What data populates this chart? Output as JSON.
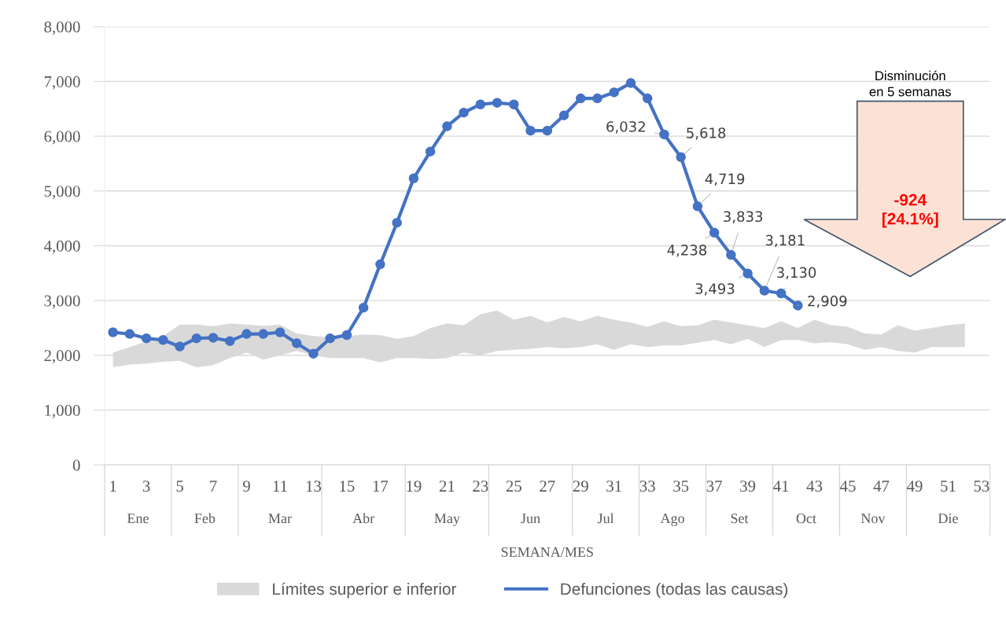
{
  "chart_data": {
    "type": "line",
    "xlabel": "SEMANA/MES",
    "x": [
      1,
      2,
      3,
      4,
      5,
      6,
      7,
      8,
      9,
      10,
      11,
      12,
      13,
      14,
      15,
      16,
      17,
      18,
      19,
      20,
      21,
      22,
      23,
      24,
      25,
      26,
      27,
      28,
      29,
      30,
      31,
      32,
      33,
      34,
      35,
      36,
      37,
      38,
      39,
      40,
      41,
      42
    ],
    "xlim": [
      0.5,
      53.5
    ],
    "xticks": [
      1,
      3,
      5,
      7,
      9,
      11,
      13,
      15,
      17,
      19,
      21,
      23,
      25,
      27,
      29,
      31,
      33,
      35,
      37,
      39,
      41,
      43,
      45,
      47,
      49,
      51,
      53
    ],
    "ylim": [
      0,
      8000
    ],
    "yticks": [
      0,
      {
        "value": 1000,
        "label": "1,000"
      },
      {
        "value": 2000,
        "label": "2,000"
      },
      {
        "value": 3000,
        "label": "3,000"
      },
      {
        "value": 4000,
        "label": "4,000"
      },
      {
        "value": 5000,
        "label": "5,000"
      },
      {
        "value": 6000,
        "label": "6,000"
      },
      {
        "value": 7000,
        "label": "7,000"
      },
      {
        "value": 8000,
        "label": "8,000"
      }
    ],
    "grid": "y",
    "legend": "bottom",
    "series": [
      {
        "name": "Límites superior e inferior",
        "type": "area",
        "color": "#d9d9d9",
        "x": [
          1,
          2,
          3,
          4,
          5,
          6,
          7,
          8,
          9,
          10,
          11,
          12,
          13,
          14,
          15,
          16,
          17,
          18,
          19,
          20,
          21,
          22,
          23,
          24,
          25,
          26,
          27,
          28,
          29,
          30,
          31,
          32,
          33,
          34,
          35,
          36,
          37,
          38,
          39,
          40,
          41,
          42,
          43,
          44,
          45,
          46,
          47,
          48,
          49,
          50,
          51,
          52
        ],
        "values": [
          null,
          null,
          null,
          null,
          null,
          null,
          null,
          null,
          null,
          null,
          null,
          null,
          null,
          null,
          null,
          null,
          null,
          null,
          null,
          null,
          null,
          null,
          null,
          null,
          null,
          null,
          null,
          null,
          null,
          null,
          null,
          null,
          null,
          null,
          null,
          null,
          null,
          null,
          null,
          null,
          null,
          null,
          null,
          null,
          null,
          null,
          null,
          null,
          null,
          null,
          null,
          null
        ],
        "upper": [
          2050,
          2150,
          2250,
          2350,
          2560,
          2560,
          2530,
          2580,
          2560,
          2540,
          2560,
          2400,
          2350,
          2330,
          2350,
          2380,
          2370,
          2300,
          2350,
          2500,
          2580,
          2550,
          2750,
          2820,
          2650,
          2720,
          2600,
          2700,
          2620,
          2720,
          2650,
          2600,
          2520,
          2620,
          2530,
          2550,
          2650,
          2600,
          2550,
          2500,
          2620,
          2500,
          2650,
          2550,
          2520,
          2400,
          2380,
          2550,
          2450,
          2500,
          2550,
          2580
        ],
        "lower": [
          1780,
          1830,
          1850,
          1880,
          1900,
          1780,
          1820,
          1950,
          2050,
          1920,
          2000,
          2080,
          2000,
          1950,
          1950,
          1950,
          1870,
          1950,
          1950,
          1930,
          1950,
          2050,
          2000,
          2080,
          2100,
          2120,
          2150,
          2130,
          2150,
          2200,
          2100,
          2200,
          2150,
          2180,
          2180,
          2230,
          2280,
          2200,
          2300,
          2150,
          2280,
          2280,
          2220,
          2240,
          2200,
          2100,
          2150,
          2080,
          2050,
          2150,
          2150,
          2150
        ]
      },
      {
        "name": "Defunciones (todas las causas)",
        "color": "#4472c4",
        "marker": "circle",
        "line_style": "solid",
        "values": [
          2420,
          2390,
          2310,
          2280,
          2160,
          2310,
          2320,
          2260,
          2390,
          2390,
          2420,
          2220,
          2030,
          2310,
          2370,
          2870,
          3660,
          4420,
          5230,
          5720,
          6180,
          6430,
          6580,
          6610,
          6580,
          6100,
          6100,
          6380,
          6690,
          6690,
          6800,
          6970,
          6690,
          6032,
          5618,
          4719,
          4238,
          3833,
          3493,
          3181,
          3130,
          2909
        ],
        "value_labels": [
          null,
          null,
          null,
          null,
          null,
          null,
          null,
          null,
          null,
          null,
          null,
          null,
          null,
          null,
          null,
          null,
          null,
          null,
          null,
          null,
          null,
          null,
          null,
          null,
          null,
          null,
          null,
          null,
          null,
          null,
          null,
          null,
          null,
          "6,032",
          "5,618",
          "4,719",
          "4,238",
          "3,833",
          "3,493",
          "3,181",
          "3,130",
          "2,909"
        ]
      }
    ],
    "annotations": [
      "Disminución\nen 5 semanas",
      "-924\n[24.1%]",
      "Ene",
      "Feb",
      "Mar",
      "Abr",
      "May",
      "Jun",
      "Jul",
      "Ago",
      "Set",
      "Oct",
      "Nov",
      "Die"
    ]
  }
}
